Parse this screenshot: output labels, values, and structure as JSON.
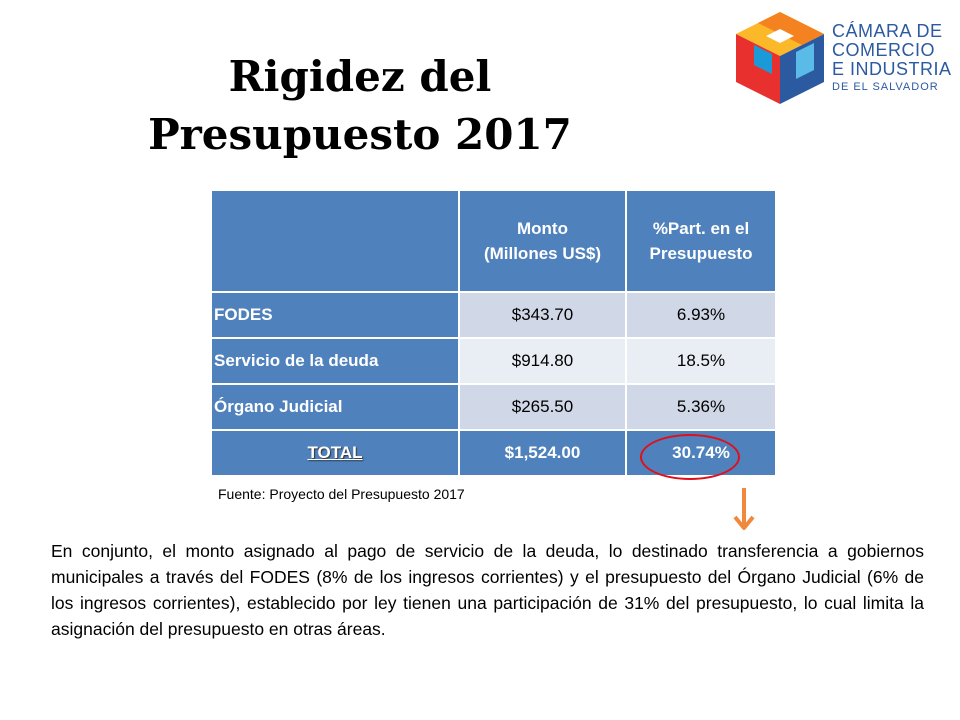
{
  "title": {
    "line1": "Rigidez del",
    "line2": "Presupuesto 2017"
  },
  "logo": {
    "line1": "CÁMARA DE",
    "line2": "COMERCIO",
    "line3": "E INDUSTRIA",
    "line4": "DE EL SALVADOR",
    "colors": [
      "#f58220",
      "#fbb829",
      "#1a9bd7",
      "#2c5aa0",
      "#e8312f",
      "#5bbbe8"
    ]
  },
  "table": {
    "headers": {
      "blank": "",
      "monto_line1": "Monto",
      "monto_line2": "(Millones US$)",
      "part_line1": "%Part. en el",
      "part_line2": "Presupuesto"
    },
    "rows": [
      {
        "label": "FODES",
        "monto": "$343.70",
        "part": "6.93%"
      },
      {
        "label": "Servicio de la deuda",
        "monto": "$914.80",
        "part": "18.5%"
      },
      {
        "label": "Órgano Judicial",
        "monto": "$265.50",
        "part": "5.36%"
      }
    ],
    "total": {
      "label": "TOTAL",
      "monto": "$1,524.00",
      "part": "30.74%"
    }
  },
  "source": "Fuente: Proyecto del Presupuesto 2017",
  "paragraph": "En conjunto, el monto asignado al pago de servicio de la deuda, lo destinado transferencia a gobiernos municipales a través del FODES (8% de los ingresos corrientes) y el presupuesto del Órgano Judicial (6% de los ingresos corrientes), establecido por ley tienen una participación de 31% del presupuesto, lo cual limita la asignación del presupuesto en otras áreas.",
  "colors": {
    "header_blue": "#4f81bd",
    "row_dark": "#d0d8e8",
    "row_light": "#e9edf4",
    "highlight_circle": "#e0101a",
    "arrow": "#f0883e"
  }
}
